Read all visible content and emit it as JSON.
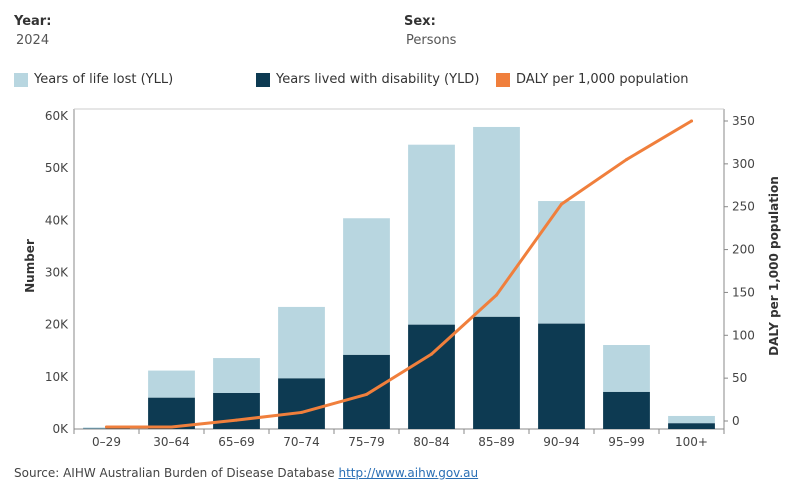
{
  "filters": {
    "year_label": "Year:",
    "year_value": "2024",
    "sex_label": "Sex:",
    "sex_value": "Persons"
  },
  "legend": {
    "yll": "Years of life lost (YLL)",
    "yld": "Years lived with disability (YLD)",
    "daly": "DALY per 1,000 population"
  },
  "colors": {
    "yll": "#b8d6e0",
    "yld": "#0d3a52",
    "daly": "#f07f3c"
  },
  "source": {
    "text": "Source: AIHW Australian Burden of Disease Database",
    "link": "http://www.aihw.gov.au"
  },
  "chart_data": {
    "type": "bar",
    "stacked": true,
    "categories": [
      "0–29",
      "30–64",
      "65–69",
      "70–74",
      "75–79",
      "80–84",
      "85–89",
      "90–94",
      "95–99",
      "100+"
    ],
    "series": [
      {
        "name": "Years lived with disability (YLD)",
        "values": [
          80,
          6000,
          6900,
          9700,
          14200,
          20000,
          21500,
          20200,
          7100,
          1100
        ]
      },
      {
        "name": "Years of life lost (YLL)",
        "values": [
          220,
          5200,
          6700,
          13700,
          26200,
          34500,
          36400,
          23500,
          9000,
          1400
        ]
      },
      {
        "name": "DALY per 1,000 population",
        "axis": "right",
        "type": "line",
        "values": [
          0,
          0,
          8,
          17,
          38,
          85,
          154,
          260,
          312,
          357
        ]
      }
    ],
    "ylabel": "Number",
    "y2label": "DALY per 1,000 population",
    "ylim": [
      0,
      60000
    ],
    "y2lim": [
      0,
      350
    ],
    "yticks": [
      "0K",
      "10K",
      "20K",
      "30K",
      "40K",
      "50K",
      "60K"
    ],
    "y2ticks": [
      "0",
      "50",
      "100",
      "150",
      "200",
      "250",
      "300",
      "350"
    ],
    "legend_position": "top",
    "grid": false
  }
}
